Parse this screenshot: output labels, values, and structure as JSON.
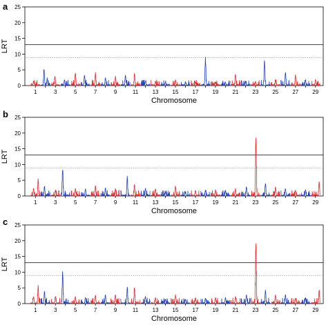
{
  "chart_data": [
    {
      "type": "line",
      "panel_label": "a",
      "xlabel": "Chromosome",
      "ylabel": "LRT",
      "ylim": [
        0,
        25
      ],
      "yticks": [
        0,
        5,
        10,
        15,
        20,
        25
      ],
      "x_tick_labels": [
        "1",
        "3",
        "5",
        "7",
        "9",
        "11",
        "13",
        "15",
        "17",
        "19",
        "21",
        "23",
        "25",
        "27",
        "29"
      ],
      "thresholds": [
        {
          "value": 13.0,
          "style": "solid"
        },
        {
          "value": 8.9,
          "style": "dotted"
        }
      ],
      "chromosomes": 29,
      "colors": {
        "odd": "#e8262b",
        "even": "#1f3fbf"
      },
      "peaks": [
        {
          "chr": 1,
          "pos": 0.3,
          "lrt": 1.6
        },
        {
          "chr": 2,
          "pos": 0.35,
          "lrt": 5.9
        },
        {
          "chr": 2,
          "pos": 0.7,
          "lrt": 2.5
        },
        {
          "chr": 3,
          "pos": 0.45,
          "lrt": 3.2
        },
        {
          "chr": 4,
          "pos": 0.4,
          "lrt": 2.0
        },
        {
          "chr": 5,
          "pos": 0.5,
          "lrt": 4.5
        },
        {
          "chr": 6,
          "pos": 0.4,
          "lrt": 3.5
        },
        {
          "chr": 7,
          "pos": 0.5,
          "lrt": 4.2
        },
        {
          "chr": 8,
          "pos": 0.5,
          "lrt": 2.7
        },
        {
          "chr": 9,
          "pos": 0.5,
          "lrt": 3.0
        },
        {
          "chr": 10,
          "pos": 0.5,
          "lrt": 3.6
        },
        {
          "chr": 11,
          "pos": 0.4,
          "lrt": 4.0
        },
        {
          "chr": 12,
          "pos": 0.5,
          "lrt": 1.5
        },
        {
          "chr": 13,
          "pos": 0.5,
          "lrt": 1.5
        },
        {
          "chr": 14,
          "pos": 0.5,
          "lrt": 1.2
        },
        {
          "chr": 15,
          "pos": 0.5,
          "lrt": 2.0
        },
        {
          "chr": 16,
          "pos": 0.5,
          "lrt": 1.3
        },
        {
          "chr": 17,
          "pos": 0.5,
          "lrt": 1.2
        },
        {
          "chr": 18,
          "pos": 0.5,
          "lrt": 9.2
        },
        {
          "chr": 19,
          "pos": 0.5,
          "lrt": 1.3
        },
        {
          "chr": 20,
          "pos": 0.5,
          "lrt": 1.2
        },
        {
          "chr": 21,
          "pos": 0.5,
          "lrt": 4.0
        },
        {
          "chr": 22,
          "pos": 0.5,
          "lrt": 1.5
        },
        {
          "chr": 23,
          "pos": 0.5,
          "lrt": 1.5
        },
        {
          "chr": 24,
          "pos": 0.4,
          "lrt": 8.8
        },
        {
          "chr": 25,
          "pos": 0.5,
          "lrt": 2.0
        },
        {
          "chr": 26,
          "pos": 0.5,
          "lrt": 4.5
        },
        {
          "chr": 27,
          "pos": 0.5,
          "lrt": 3.5
        },
        {
          "chr": 28,
          "pos": 0.5,
          "lrt": 2.0
        },
        {
          "chr": 29,
          "pos": 0.5,
          "lrt": 2.0
        }
      ]
    },
    {
      "type": "line",
      "panel_label": "b",
      "xlabel": "Chromosome",
      "ylabel": "LRT",
      "ylim": [
        0,
        25
      ],
      "yticks": [
        0,
        5,
        10,
        15,
        20,
        25
      ],
      "x_tick_labels": [
        "1",
        "3",
        "5",
        "7",
        "9",
        "11",
        "13",
        "15",
        "17",
        "19",
        "21",
        "23",
        "25",
        "27",
        "29"
      ],
      "thresholds": [
        {
          "value": 13.0,
          "style": "solid"
        },
        {
          "value": 8.9,
          "style": "dotted"
        }
      ],
      "chromosomes": 29,
      "colors": {
        "odd": "#e8262b",
        "even": "#1f3fbf"
      },
      "peaks": [
        {
          "chr": 1,
          "pos": 0.3,
          "lrt": 2.5
        },
        {
          "chr": 1,
          "pos": 0.8,
          "lrt": 5.5
        },
        {
          "chr": 2,
          "pos": 0.4,
          "lrt": 3.5
        },
        {
          "chr": 3,
          "pos": 0.5,
          "lrt": 2.0
        },
        {
          "chr": 4,
          "pos": 0.2,
          "lrt": 9.5
        },
        {
          "chr": 5,
          "pos": 0.5,
          "lrt": 2.5
        },
        {
          "chr": 6,
          "pos": 0.5,
          "lrt": 2.5
        },
        {
          "chr": 7,
          "pos": 0.5,
          "lrt": 3.5
        },
        {
          "chr": 8,
          "pos": 0.5,
          "lrt": 3.0
        },
        {
          "chr": 9,
          "pos": 0.5,
          "lrt": 2.5
        },
        {
          "chr": 10,
          "pos": 0.7,
          "lrt": 6.5
        },
        {
          "chr": 11,
          "pos": 0.4,
          "lrt": 4.0
        },
        {
          "chr": 12,
          "pos": 0.5,
          "lrt": 2.5
        },
        {
          "chr": 13,
          "pos": 0.5,
          "lrt": 2.5
        },
        {
          "chr": 14,
          "pos": 0.5,
          "lrt": 1.5
        },
        {
          "chr": 15,
          "pos": 0.5,
          "lrt": 3.5
        },
        {
          "chr": 16,
          "pos": 0.5,
          "lrt": 1.5
        },
        {
          "chr": 17,
          "pos": 0.5,
          "lrt": 2.0
        },
        {
          "chr": 18,
          "pos": 0.5,
          "lrt": 2.0
        },
        {
          "chr": 19,
          "pos": 0.5,
          "lrt": 2.0
        },
        {
          "chr": 20,
          "pos": 0.5,
          "lrt": 2.0
        },
        {
          "chr": 21,
          "pos": 0.5,
          "lrt": 2.5
        },
        {
          "chr": 22,
          "pos": 0.6,
          "lrt": 3.0
        },
        {
          "chr": 23,
          "pos": 0.55,
          "lrt": 20.3
        },
        {
          "chr": 24,
          "pos": 0.5,
          "lrt": 4.5
        },
        {
          "chr": 25,
          "pos": 0.5,
          "lrt": 3.0
        },
        {
          "chr": 26,
          "pos": 0.5,
          "lrt": 2.5
        },
        {
          "chr": 27,
          "pos": 0.5,
          "lrt": 2.0
        },
        {
          "chr": 28,
          "pos": 0.5,
          "lrt": 2.0
        },
        {
          "chr": 29,
          "pos": 0.9,
          "lrt": 5.0
        }
      ]
    },
    {
      "type": "line",
      "panel_label": "c",
      "xlabel": "Chromosome",
      "ylabel": "LRT",
      "ylim": [
        0,
        25
      ],
      "yticks": [
        0,
        5,
        10,
        15,
        20,
        25
      ],
      "x_tick_labels": [
        "1",
        "3",
        "5",
        "7",
        "9",
        "11",
        "13",
        "15",
        "17",
        "19",
        "21",
        "23",
        "25",
        "27",
        "29"
      ],
      "thresholds": [
        {
          "value": 13.0,
          "style": "solid"
        },
        {
          "value": 8.9,
          "style": "dotted"
        }
      ],
      "chromosomes": 29,
      "colors": {
        "odd": "#e8262b",
        "even": "#1f3fbf"
      },
      "peaks": [
        {
          "chr": 1,
          "pos": 0.3,
          "lrt": 2.5
        },
        {
          "chr": 1,
          "pos": 0.8,
          "lrt": 6.0
        },
        {
          "chr": 2,
          "pos": 0.4,
          "lrt": 4.0
        },
        {
          "chr": 3,
          "pos": 0.5,
          "lrt": 2.5
        },
        {
          "chr": 4,
          "pos": 0.2,
          "lrt": 10.5
        },
        {
          "chr": 5,
          "pos": 0.5,
          "lrt": 2.5
        },
        {
          "chr": 6,
          "pos": 0.5,
          "lrt": 2.0
        },
        {
          "chr": 7,
          "pos": 0.5,
          "lrt": 3.0
        },
        {
          "chr": 8,
          "pos": 0.5,
          "lrt": 3.0
        },
        {
          "chr": 9,
          "pos": 0.5,
          "lrt": 3.0
        },
        {
          "chr": 10,
          "pos": 0.7,
          "lrt": 5.5
        },
        {
          "chr": 11,
          "pos": 0.4,
          "lrt": 5.5
        },
        {
          "chr": 12,
          "pos": 0.5,
          "lrt": 2.5
        },
        {
          "chr": 13,
          "pos": 0.5,
          "lrt": 2.0
        },
        {
          "chr": 14,
          "pos": 0.5,
          "lrt": 1.5
        },
        {
          "chr": 15,
          "pos": 0.5,
          "lrt": 3.0
        },
        {
          "chr": 16,
          "pos": 0.5,
          "lrt": 1.5
        },
        {
          "chr": 17,
          "pos": 0.5,
          "lrt": 2.0
        },
        {
          "chr": 18,
          "pos": 0.5,
          "lrt": 2.0
        },
        {
          "chr": 19,
          "pos": 0.5,
          "lrt": 2.0
        },
        {
          "chr": 20,
          "pos": 0.5,
          "lrt": 2.0
        },
        {
          "chr": 21,
          "pos": 0.5,
          "lrt": 2.5
        },
        {
          "chr": 22,
          "pos": 0.6,
          "lrt": 3.0
        },
        {
          "chr": 23,
          "pos": 0.55,
          "lrt": 21.2
        },
        {
          "chr": 24,
          "pos": 0.5,
          "lrt": 4.5
        },
        {
          "chr": 25,
          "pos": 0.5,
          "lrt": 3.0
        },
        {
          "chr": 26,
          "pos": 0.5,
          "lrt": 3.0
        },
        {
          "chr": 27,
          "pos": 0.5,
          "lrt": 2.0
        },
        {
          "chr": 28,
          "pos": 0.5,
          "lrt": 2.0
        },
        {
          "chr": 29,
          "pos": 0.9,
          "lrt": 4.5
        }
      ]
    }
  ]
}
